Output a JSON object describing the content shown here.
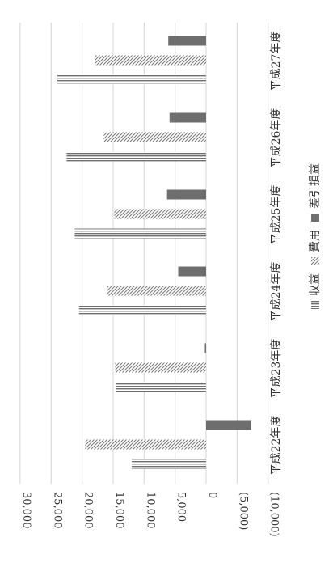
{
  "chart_data": {
    "type": "bar",
    "orientation": "rotated-90-clockwise",
    "categories": [
      "平成22年度",
      "平成23年度",
      "平成24年度",
      "平成25年度",
      "平成26年度",
      "平成27年度"
    ],
    "series": [
      {
        "name": "収益",
        "pattern": "vertical-lines",
        "values": [
          12000,
          14500,
          20500,
          21200,
          22500,
          24000
        ]
      },
      {
        "name": "費用",
        "pattern": "diagonal-lines",
        "values": [
          19500,
          14700,
          16000,
          14800,
          16500,
          18000
        ]
      },
      {
        "name": "差引損益",
        "pattern": "solid",
        "values": [
          -7300,
          200,
          4500,
          6300,
          5900,
          6100
        ]
      }
    ],
    "ylim": [
      -10000,
      30000
    ],
    "ytick_labels": [
      "30,000",
      "25,000",
      "20,000",
      "15,000",
      "10,000",
      "5,000",
      "0",
      "(5,000)",
      "(10,000)"
    ],
    "ytick_values": [
      30000,
      25000,
      20000,
      15000,
      10000,
      5000,
      0,
      -5000,
      -10000
    ],
    "grid": true,
    "legend_position": "bottom",
    "colors": {
      "bar": "#777777",
      "solid": "#6e6e6e",
      "grid": "#d4d4d4",
      "text": "#333333"
    }
  }
}
